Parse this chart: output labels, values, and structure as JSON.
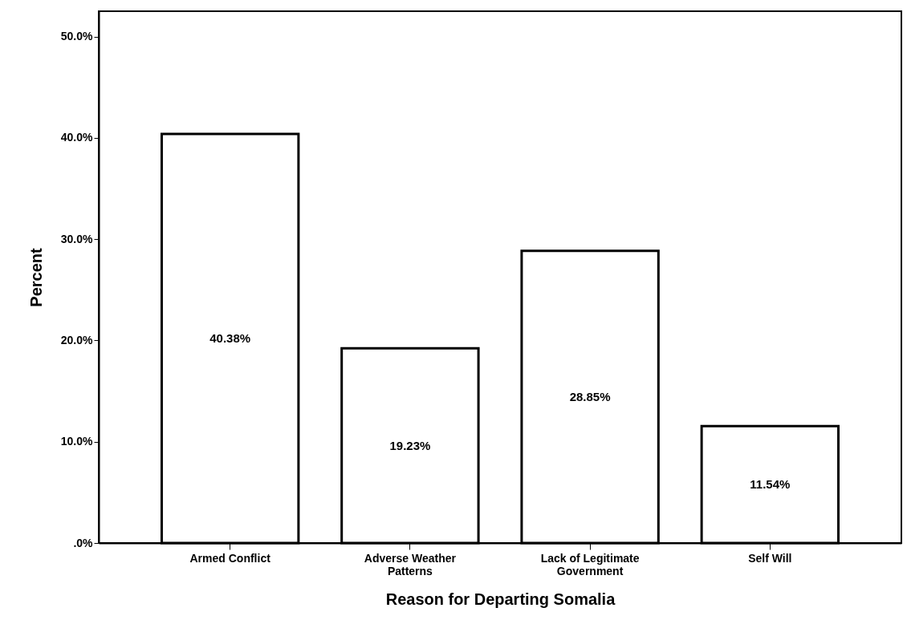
{
  "chart_data": {
    "type": "bar",
    "xlabel": "Reason for Departing Somalia",
    "ylabel": "Percent",
    "categories": [
      "Armed Conflict",
      "Adverse Weather Patterns",
      "Lack of Legitimate Government",
      "Self Will"
    ],
    "values": [
      40.38,
      19.23,
      28.85,
      11.54
    ],
    "color": "#ffffff",
    "value_labels": [
      "40.38%",
      "19.23%",
      "28.85%",
      "11.54%"
    ],
    "ylim": [
      0,
      52.5
    ],
    "yticks": [
      {
        "value": 0,
        "label": ".0%"
      },
      {
        "value": 10,
        "label": "10.0%"
      },
      {
        "value": 20,
        "label": "20.0%"
      },
      {
        "value": 30,
        "label": "30.0%"
      },
      {
        "value": 40,
        "label": "40.0%"
      },
      {
        "value": 50,
        "label": "50.0%"
      }
    ],
    "grid": false
  }
}
